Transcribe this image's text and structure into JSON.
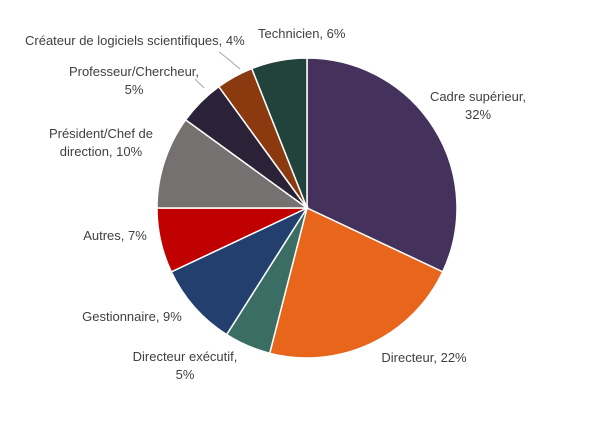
{
  "chart_data": {
    "type": "pie",
    "start_angle_deg": 0,
    "direction": "clockwise",
    "legend": "none",
    "categories": [
      "Cadre supérieur",
      "Directeur",
      "Directeur exécutif",
      "Gestionnaire",
      "Autres",
      "Président/Chef de direction",
      "Professeur/Chercheur",
      "Créateur de logiciels scientifiques",
      "Technicien"
    ],
    "values": [
      32,
      22,
      5,
      9,
      7,
      10,
      5,
      4,
      6
    ],
    "colors": [
      "#44325c",
      "#e8651c",
      "#3a6e65",
      "#233f6d",
      "#c00000",
      "#767171",
      "#2b2238",
      "#8b3a10",
      "#22423c"
    ],
    "labels": [
      {
        "lines": [
          "Cadre supérieur,",
          "32%"
        ]
      },
      {
        "lines": [
          "Directeur, 22%"
        ]
      },
      {
        "lines": [
          "Directeur exécutif,",
          "5%"
        ]
      },
      {
        "lines": [
          "Gestionnaire, 9%"
        ]
      },
      {
        "lines": [
          "Autres, 7%"
        ]
      },
      {
        "lines": [
          "Président/Chef de",
          "direction, 10%"
        ]
      },
      {
        "lines": [
          "Professeur/Chercheur,",
          "5%"
        ]
      },
      {
        "lines": [
          "Créateur de logiciels scientifiques, 4%"
        ]
      },
      {
        "lines": [
          "Technicien, 6%"
        ]
      }
    ]
  }
}
